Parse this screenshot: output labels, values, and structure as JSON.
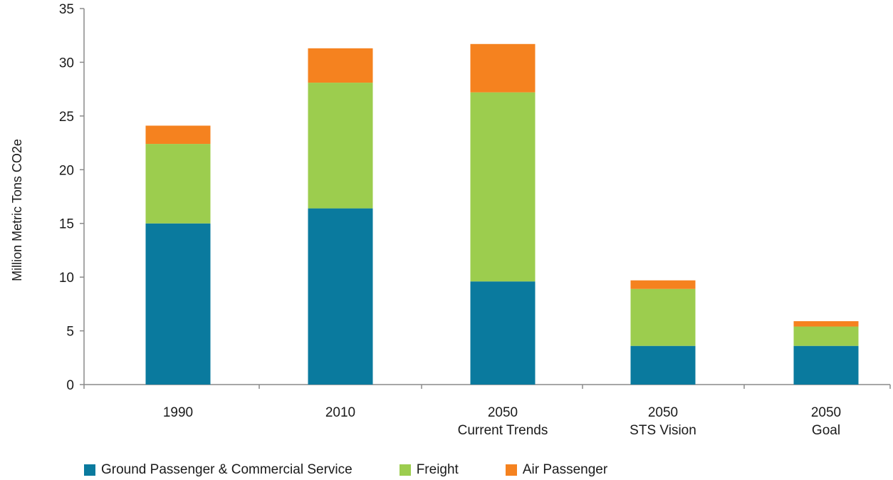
{
  "chart_data": {
    "type": "bar",
    "stacked": true,
    "ylabel": "Million Metric Tons CO2e",
    "ylim": [
      0,
      35
    ],
    "yticks": [
      0,
      5,
      10,
      15,
      20,
      25,
      30,
      35
    ],
    "categories": [
      {
        "line1": "1990",
        "line2": ""
      },
      {
        "line1": "2010",
        "line2": ""
      },
      {
        "line1": "2050",
        "line2": "Current Trends"
      },
      {
        "line1": "2050",
        "line2": "STS Vision"
      },
      {
        "line1": "2050",
        "line2": "Goal"
      }
    ],
    "series": [
      {
        "name": "Ground Passenger & Commercial Service",
        "color": "#0a7a9e",
        "values": [
          15.0,
          16.4,
          9.6,
          3.6,
          3.6
        ]
      },
      {
        "name": "Freight",
        "color": "#9ccd4e",
        "values": [
          7.4,
          11.7,
          17.6,
          5.3,
          1.8
        ]
      },
      {
        "name": "Air Passenger",
        "color": "#f5821f",
        "values": [
          1.7,
          3.2,
          4.5,
          0.8,
          0.5
        ]
      }
    ],
    "legend_position": "bottom",
    "grid": false
  }
}
